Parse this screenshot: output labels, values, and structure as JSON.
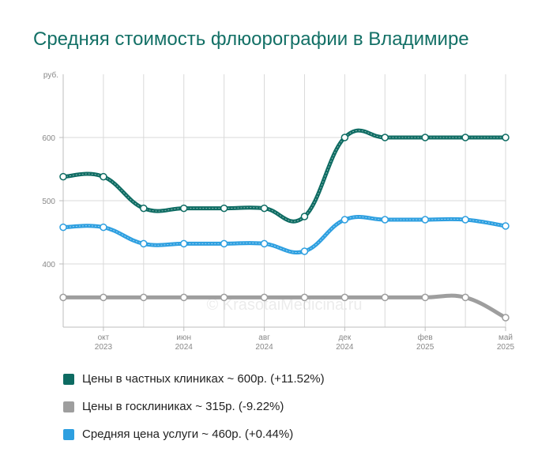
{
  "title": "Средняя стоимость флюорографии в Владимире",
  "watermark": "© KrasotaiMedicina.ru",
  "chart_data": {
    "type": "line",
    "ylabel": "руб.",
    "ylim": [
      300,
      700
    ],
    "yticks": [
      400,
      500,
      600
    ],
    "grid": true,
    "x_positions_count": 12,
    "xtick_labels": [
      {
        "index": 1,
        "line1": "окт",
        "line2": "2023"
      },
      {
        "index": 3,
        "line1": "июн",
        "line2": "2024"
      },
      {
        "index": 5,
        "line1": "авг",
        "line2": "2024"
      },
      {
        "index": 7,
        "line1": "дек",
        "line2": "2024"
      },
      {
        "index": 9,
        "line1": "фев",
        "line2": "2025"
      },
      {
        "index": 11,
        "line1": "май",
        "line2": "2025"
      }
    ],
    "series": [
      {
        "name": "Цены в частных клиниках",
        "color": "#0d6b62",
        "wavy": true,
        "values": [
          538,
          538,
          488,
          488,
          488,
          488,
          475,
          600,
          600,
          600,
          600,
          600
        ]
      },
      {
        "name": "Средняя цена услуги",
        "color": "#2d9fe0",
        "wavy": true,
        "values": [
          458,
          458,
          432,
          432,
          432,
          432,
          420,
          470,
          470,
          470,
          470,
          460
        ]
      },
      {
        "name": "Цены в госклиниках",
        "color": "#9e9e9e",
        "wavy": false,
        "values": [
          347,
          347,
          347,
          347,
          347,
          347,
          347,
          347,
          347,
          347,
          347,
          315
        ]
      }
    ]
  },
  "legend": [
    {
      "label": "Цены в частных клиниках ~ 600р. (+11.52%)",
      "color": "#0d6b62"
    },
    {
      "label": "Цены в госклиниках ~ 315р. (-9.22%)",
      "color": "#9e9e9e"
    },
    {
      "label": "Средняя цена услуги ~ 460р. (+0.44%)",
      "color": "#2d9fe0"
    }
  ]
}
